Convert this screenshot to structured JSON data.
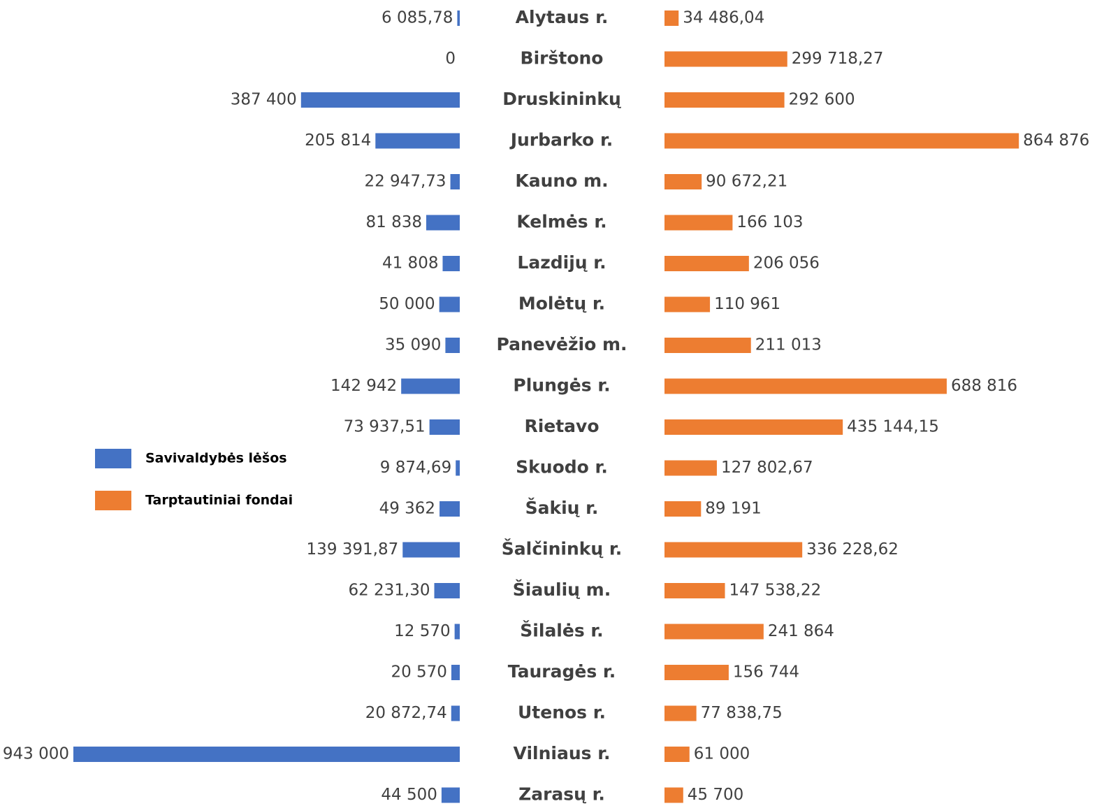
{
  "chart_data": {
    "type": "butterfly-bar",
    "categories": [
      "Alytaus r.",
      "Birštono",
      "Druskininkų",
      "Jurbarko r.",
      "Kauno m.",
      "Kelmės r.",
      "Lazdijų r.",
      "Molėtų r.",
      "Panevėžio m.",
      "Plungės r.",
      "Rietavo",
      "Skuodo r.",
      "Šakių r.",
      "Šalčininkų r.",
      "Šiaulių m.",
      "Šilalės r.",
      "Tauragės r.",
      "Utenos r.",
      "Vilniaus r.",
      "Zarasų r."
    ],
    "series": [
      {
        "name": "Savivaldybės lėšos",
        "color": "#4472c4",
        "side": "left",
        "values": [
          6085.78,
          0,
          387400,
          205814,
          22947.73,
          81838,
          41808,
          50000,
          35090,
          142942,
          73937.51,
          9874.69,
          49362,
          139391.87,
          62231.3,
          12570,
          20570,
          20872.74,
          943000,
          44500
        ],
        "value_labels": [
          "6 085,78",
          "0",
          "387 400",
          "205 814",
          "22 947,73",
          "81 838",
          "41 808",
          "50 000",
          "35 090",
          "142 942",
          "73 937,51",
          "9 874,69",
          "49 362",
          "139 391,87",
          "62 231,30",
          "12 570",
          "20 570",
          "20 872,74",
          "943 000",
          "44 500"
        ]
      },
      {
        "name": "Tarptautiniai fondai",
        "color": "#ed7d31",
        "side": "right",
        "values": [
          34486.04,
          299718.27,
          292600,
          864876,
          90672.21,
          166103,
          206056,
          110961,
          211013,
          688816,
          435144.15,
          127802.67,
          89191,
          336228.62,
          147538.22,
          241864,
          156744,
          77838.75,
          61000,
          45700
        ],
        "value_labels": [
          "34 486,04",
          "299 718,27",
          "292 600",
          "864 876",
          "90 672,21",
          "166 103",
          "206 056",
          "110 961",
          "211 013",
          "688 816",
          "435 144,15",
          "127 802,67",
          "89 191",
          "336 228,62",
          "147 538,22",
          "241 864",
          "156 744",
          "77 838,75",
          "61 000",
          "45 700"
        ]
      }
    ],
    "legend": "left"
  }
}
